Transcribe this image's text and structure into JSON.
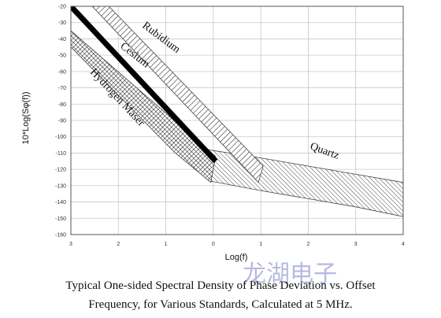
{
  "chart_data": {
    "type": "area",
    "xlabel": "Log(f)",
    "ylabel": "10*Log(Sφ(f))",
    "x_ticks": [
      "3",
      "2",
      "1",
      "0",
      "1",
      "2",
      "3",
      "4"
    ],
    "x_tick_values": [
      -3,
      -2,
      -1,
      0,
      1,
      2,
      3,
      4
    ],
    "y_ticks": [
      "-20",
      "-30",
      "-40",
      "-50",
      "-60",
      "-70",
      "-80",
      "-90",
      "-100",
      "-110",
      "-120",
      "-130",
      "-140",
      "-150",
      "-160"
    ],
    "xlim": [
      -3,
      4
    ],
    "ylim": [
      -160,
      -20
    ],
    "grid": true,
    "series": [
      {
        "name": "Rubidium",
        "pattern": "diagonal-hatch",
        "upper": [
          [
            -2.2,
            -20
          ],
          [
            1.05,
            -118
          ]
        ],
        "lower": [
          [
            -2.55,
            -20
          ],
          [
            0.95,
            -128
          ]
        ]
      },
      {
        "name": "Cesium",
        "pattern": "solid-black-line",
        "line": [
          [
            -3,
            -20
          ],
          [
            0.05,
            -115
          ]
        ]
      },
      {
        "name": "Hydrogen Maser",
        "pattern": "cross-hatch",
        "upper": [
          [
            -3,
            -35
          ],
          [
            0.05,
            -112
          ]
        ],
        "lower": [
          [
            -3,
            -45
          ],
          [
            -0.8,
            -110
          ],
          [
            -0.05,
            -128
          ]
        ]
      },
      {
        "name": "Quartz",
        "pattern": "diagonal-hatch",
        "upper": [
          [
            -0.1,
            -108
          ],
          [
            1,
            -113
          ],
          [
            2,
            -118
          ],
          [
            3,
            -123
          ],
          [
            4,
            -128
          ]
        ],
        "lower": [
          [
            -0.1,
            -127
          ],
          [
            1,
            -133
          ],
          [
            2,
            -138
          ],
          [
            3,
            -143
          ],
          [
            4,
            -149
          ]
        ]
      }
    ]
  },
  "caption_line1": "Typical One-sided Spectral Density of Phase Deviation vs. Offset",
  "caption_line2": "Frequency, for Various Standards, Calculated at 5 MHz.",
  "watermark": "龙湖电子"
}
